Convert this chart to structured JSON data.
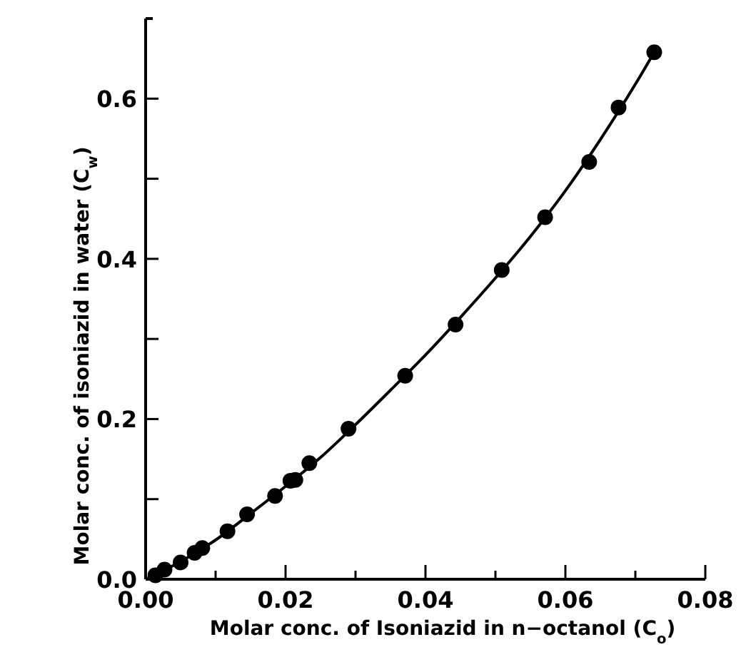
{
  "chart_data": {
    "type": "scatter",
    "xlabel": "Molar conc. of Isoniazid in n−octanol (C$_{o}$)",
    "ylabel": "Molar conc. of isoniazid in water (C$_{w}$)",
    "xlim": [
      0,
      0.08
    ],
    "ylim": [
      0,
      0.7
    ],
    "xticks": [
      {
        "value": 0,
        "label": "0.00"
      },
      0.02,
      0.04,
      0.06,
      {
        "value": 0.08,
        "label": "0.08"
      },
      {
        "value": 0.01,
        "label": null
      },
      {
        "value": 0.03,
        "label": null
      },
      {
        "value": 0.05,
        "label": null
      },
      {
        "value": 0.07,
        "label": null
      }
    ],
    "yticks": [
      {
        "value": 0,
        "label": "0.0"
      },
      {
        "value": 0.1,
        "label": null
      },
      0.2,
      {
        "value": 0.3,
        "label": null
      },
      0.4,
      {
        "value": 0.5,
        "label": null
      },
      0.6
    ],
    "grid": false,
    "series": [
      {
        "color": "#000000",
        "marker": "circle",
        "x": [
          0.0014,
          0.0027,
          0.005,
          0.007,
          0.0081,
          0.0117,
          0.0145,
          0.0185,
          0.0207,
          0.0214,
          0.0234,
          0.029,
          0.0371,
          0.0443,
          0.0509,
          0.0571,
          0.0634,
          0.0676,
          0.0727
        ],
        "values": [
          0.005,
          0.012,
          0.021,
          0.033,
          0.039,
          0.06,
          0.081,
          0.104,
          0.123,
          0.124,
          0.145,
          0.188,
          0.254,
          0.318,
          0.386,
          0.452,
          0.521,
          0.589,
          0.658
        ]
      },
      {
        "type": "line",
        "color": "#000000",
        "marker": "none",
        "line_style": "solid",
        "x": [
          0,
          0.005,
          0.01,
          0.015,
          0.02,
          0.025,
          0.03,
          0.035,
          0.04,
          0.045,
          0.05,
          0.055,
          0.06,
          0.065,
          0.07,
          0.0727
        ],
        "values": [
          0,
          0.022,
          0.049,
          0.082,
          0.116,
          0.152,
          0.193,
          0.236,
          0.28,
          0.327,
          0.376,
          0.428,
          0.485,
          0.549,
          0.618,
          0.658
        ]
      }
    ]
  }
}
